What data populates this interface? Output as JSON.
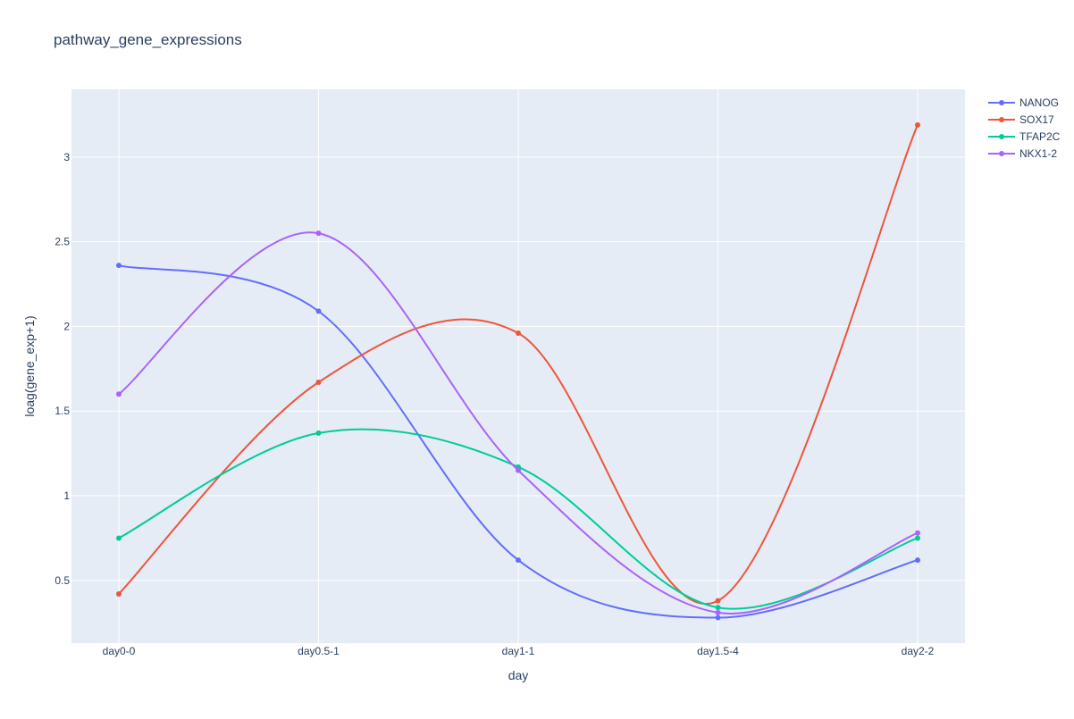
{
  "chart_data": {
    "type": "line",
    "title": "pathway_gene_expressions",
    "xlabel": "day",
    "ylabel": "loag(gene_exp+1)",
    "categories": [
      "day0-0",
      "day0.5-1",
      "day1-1",
      "day1.5-4",
      "day2-2"
    ],
    "yticks": [
      0.5,
      1,
      1.5,
      2,
      2.5,
      3
    ],
    "ytick_labels": [
      "0.5",
      "1",
      "1.5",
      "2",
      "2.5",
      "3"
    ],
    "ylim": [
      0.13,
      3.4
    ],
    "grid": true,
    "line_shape": "spline",
    "legend_position": "top-right",
    "plot_bgcolor": "#e5ecf6",
    "series": [
      {
        "name": "NANOG",
        "color": "#636efa",
        "values": [
          2.36,
          2.09,
          0.62,
          0.28,
          0.62
        ]
      },
      {
        "name": "SOX17",
        "color": "#ef553b",
        "values": [
          0.42,
          1.67,
          1.96,
          0.38,
          3.19
        ]
      },
      {
        "name": "TFAP2C",
        "color": "#00cc96",
        "values": [
          0.75,
          1.37,
          1.17,
          0.34,
          0.75
        ]
      },
      {
        "name": "NKX1-2",
        "color": "#ab63fa",
        "values": [
          1.6,
          2.55,
          1.15,
          0.31,
          0.78
        ]
      }
    ]
  }
}
